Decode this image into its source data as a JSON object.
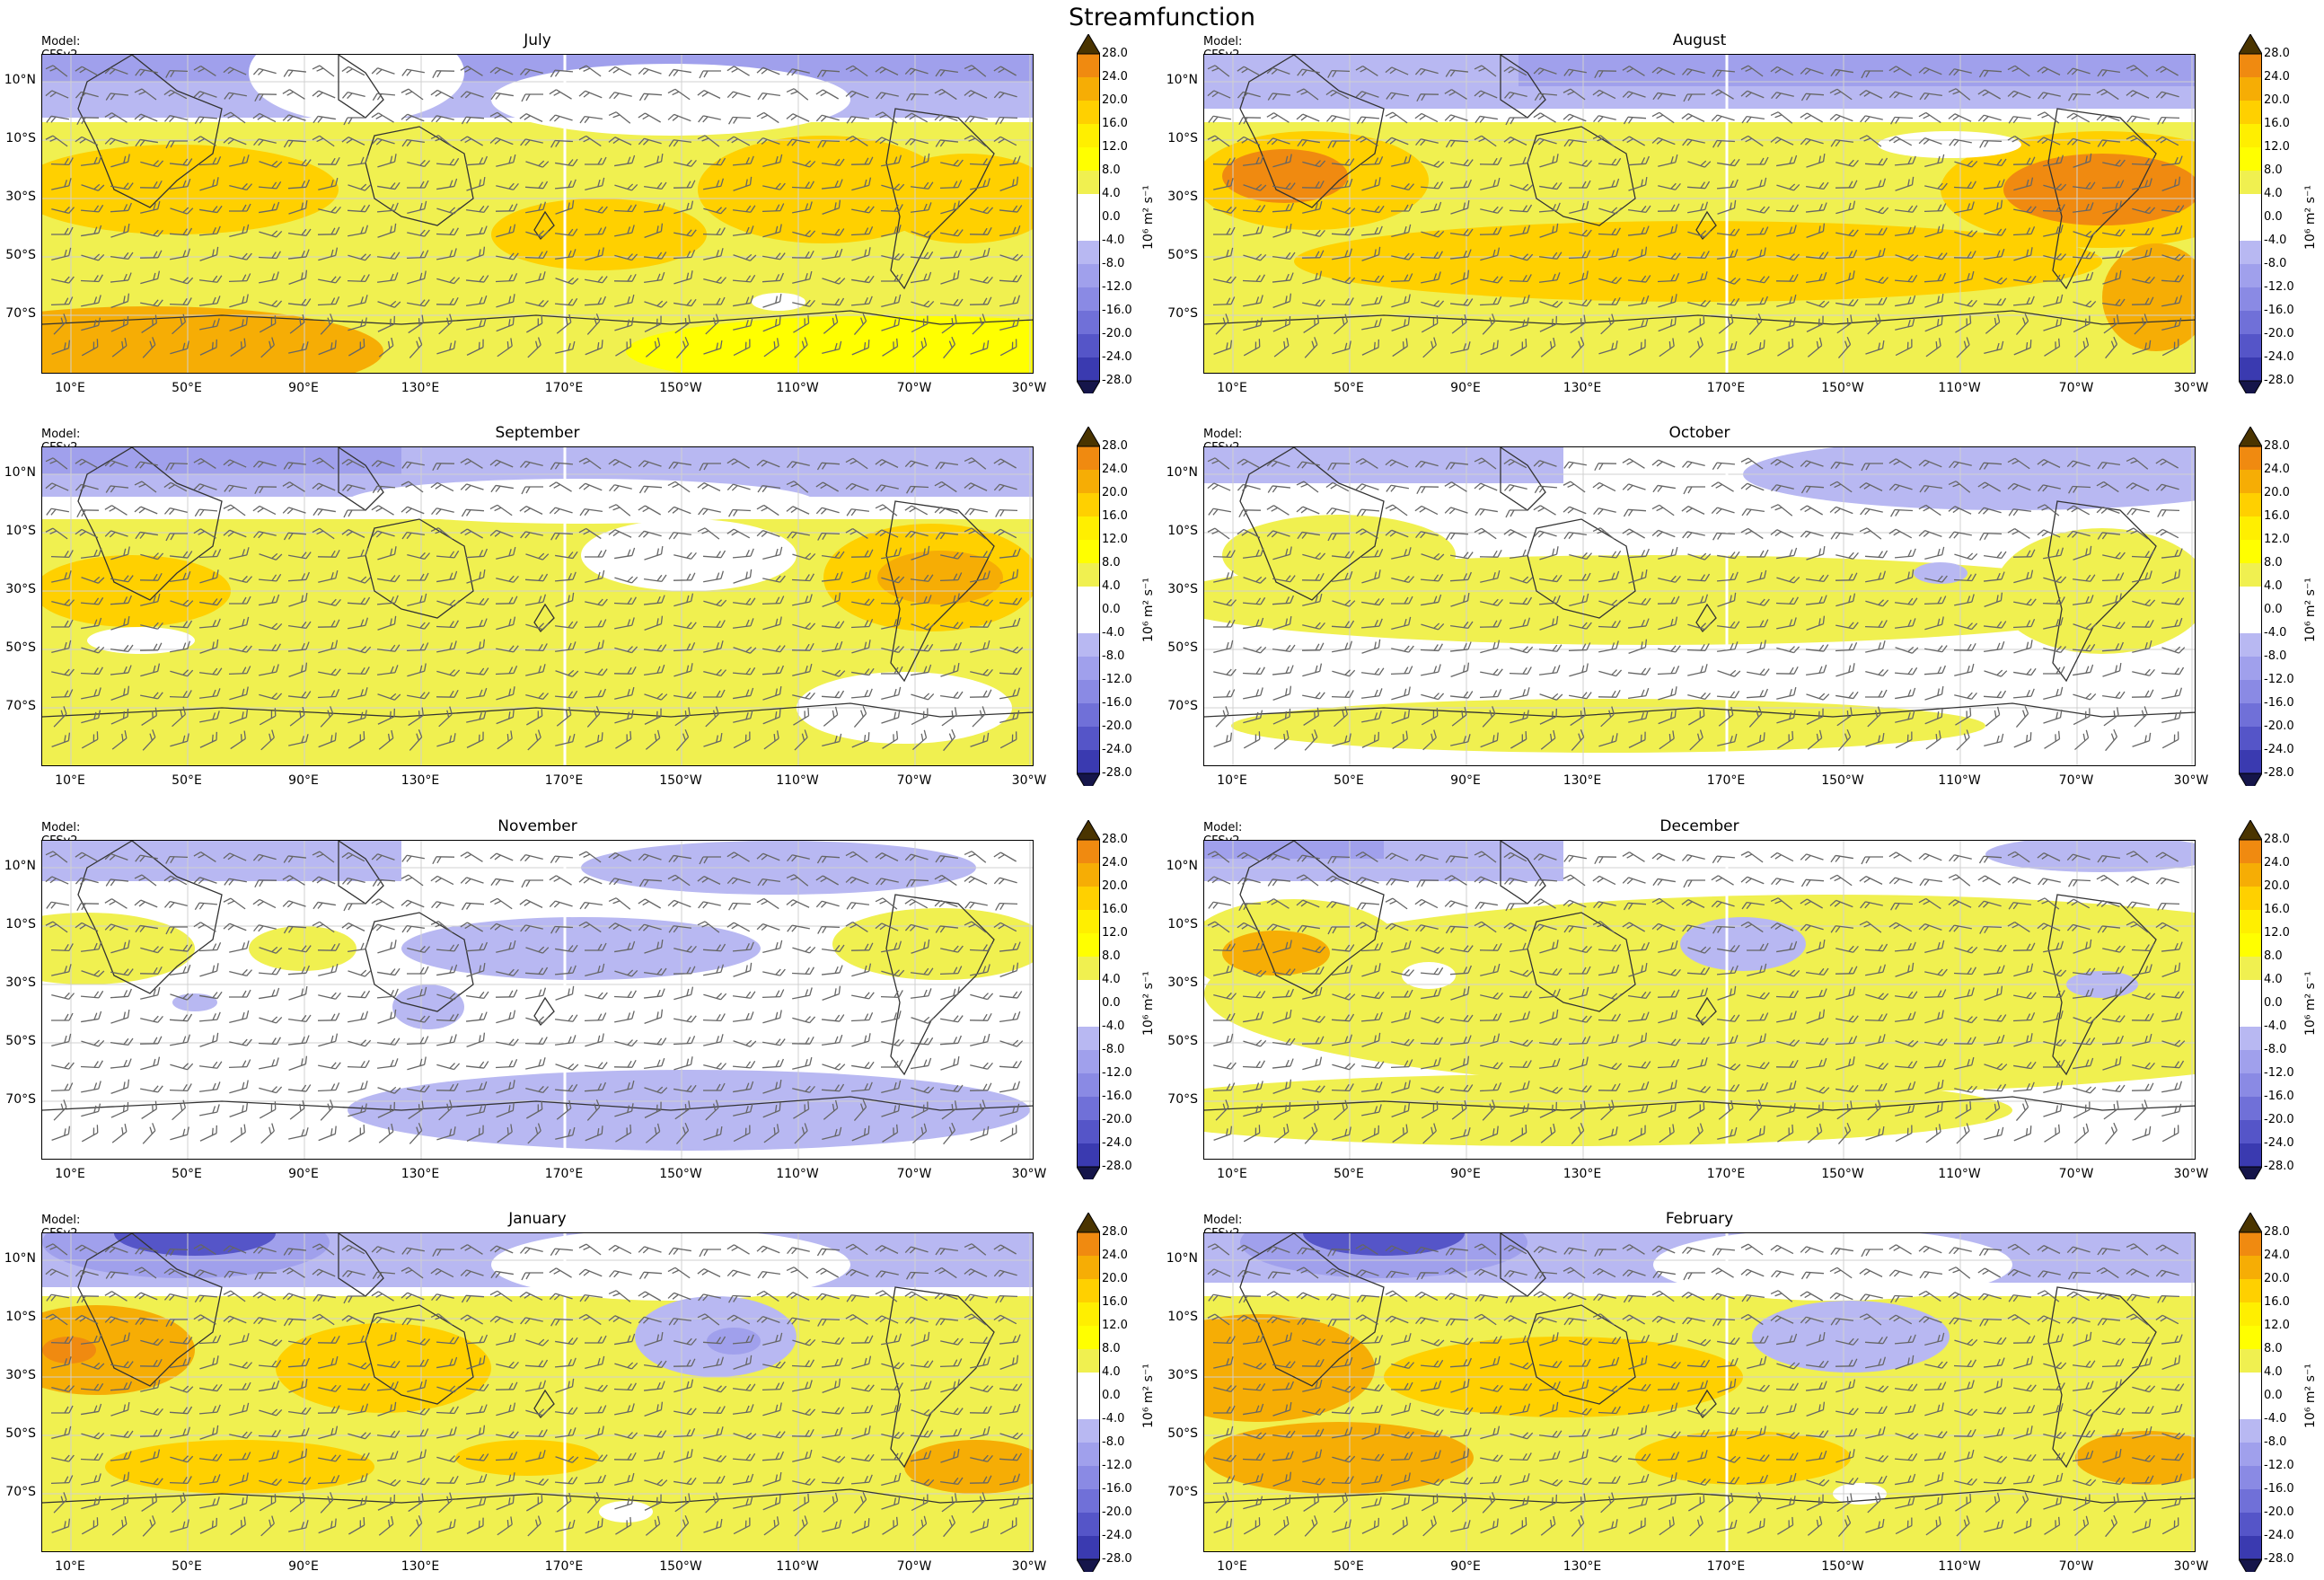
{
  "figure": {
    "title": "Streamfunction",
    "model_label": "Model: CFSv2",
    "colorbar_unit": "10⁶ m² s⁻¹",
    "colorbar_levels": [
      "28.0",
      "24.0",
      "20.0",
      "16.0",
      "12.0",
      "8.0",
      "4.0",
      "0.0",
      "-4.0",
      "-8.0",
      "-12.0",
      "-16.0",
      "-20.0",
      "-24.0",
      "-28.0"
    ],
    "colorbar_colors": [
      "#f08a10",
      "#f6ad05",
      "#ffd000",
      "#ffef00",
      "#ffff00",
      "#f0f050",
      "#ffffff",
      "#ffffff",
      "#b8b8f2",
      "#a0a0ec",
      "#8a8ae4",
      "#7070d8",
      "#5555c8",
      "#3a3ab0"
    ],
    "colorbar_extend_top": "#4a3400",
    "colorbar_extend_bottom": "#15154a",
    "lat_ticks": [
      "10°N",
      "10°S",
      "30°S",
      "50°S",
      "70°S"
    ],
    "lon_ticks": [
      "10°E",
      "50°E",
      "90°E",
      "130°E",
      "170°E",
      "150°W",
      "110°W",
      "70°W",
      "30°W"
    ]
  },
  "panels": [
    {
      "title": "July"
    },
    {
      "title": "August"
    },
    {
      "title": "September"
    },
    {
      "title": "October"
    },
    {
      "title": "November"
    },
    {
      "title": "December"
    },
    {
      "title": "January"
    },
    {
      "title": "February"
    }
  ]
}
